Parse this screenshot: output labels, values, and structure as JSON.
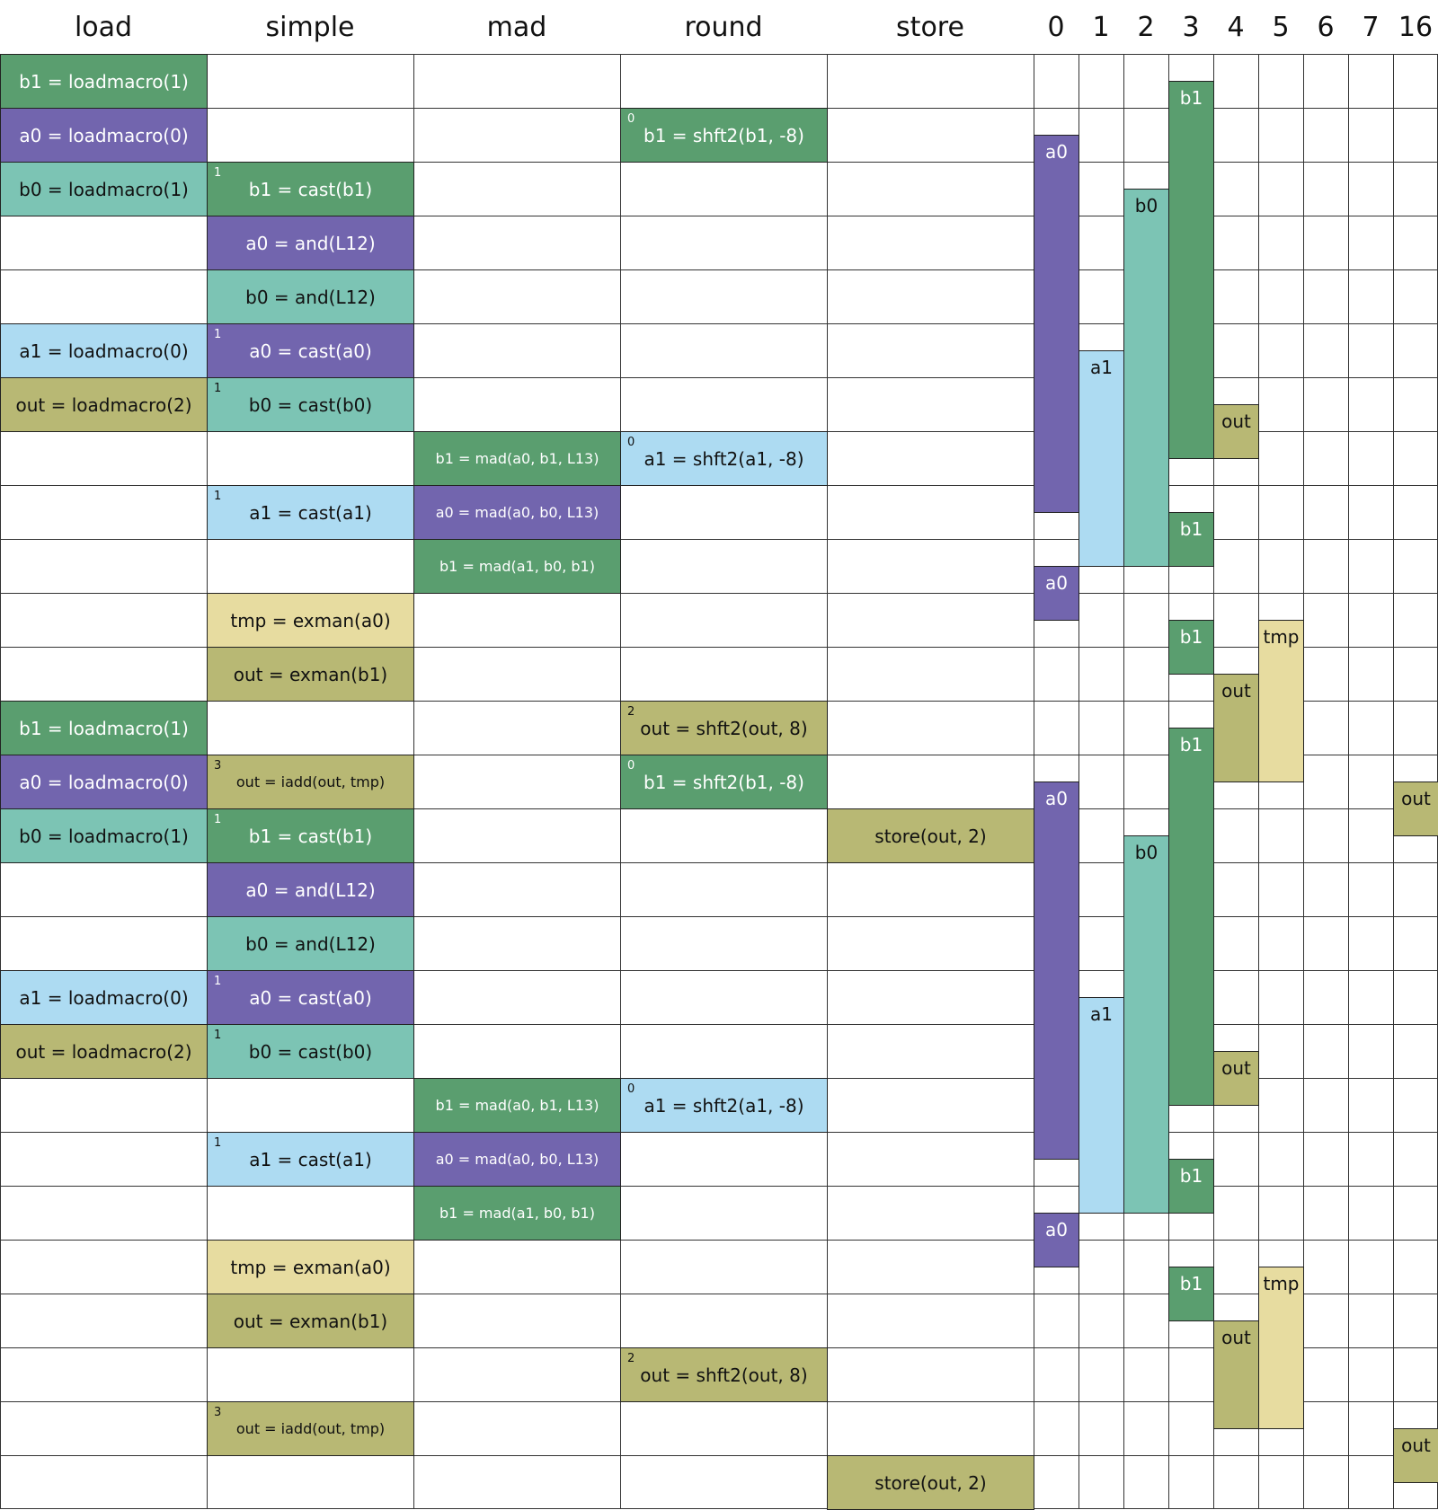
{
  "header": {
    "columns": [
      "load",
      "simple",
      "mad",
      "round",
      "store"
    ],
    "registers": [
      "0",
      "1",
      "2",
      "3",
      "4",
      "5",
      "6",
      "7",
      "16"
    ]
  },
  "rows": [
    [
      {
        "text": "b1 = loadmacro(1)",
        "color": "#5a9e6f"
      },
      null,
      null,
      null,
      null
    ],
    [
      {
        "text": "a0 = loadmacro(0)",
        "color": "#7265ae"
      },
      null,
      null,
      {
        "text": "b1 = shft2(b1, -8)",
        "sup": 0,
        "color": "#5a9e6f"
      },
      null
    ],
    [
      {
        "text": "b0 = loadmacro(1)",
        "color": "#7cc4b4"
      },
      {
        "text": "b1 = cast(b1)",
        "sup": 1,
        "color": "#5a9e6f"
      },
      null,
      null,
      null
    ],
    [
      null,
      {
        "text": "a0 = and(L12)",
        "color": "#7265ae"
      },
      null,
      null,
      null
    ],
    [
      null,
      {
        "text": "b0 = and(L12)",
        "color": "#7cc4b4"
      },
      null,
      null,
      null
    ],
    [
      {
        "text": "a1 = loadmacro(0)",
        "color": "#addbf2"
      },
      {
        "text": "a0 = cast(a0)",
        "sup": 1,
        "color": "#7265ae"
      },
      null,
      null,
      null
    ],
    [
      {
        "text": "out = loadmacro(2)",
        "color": "#b8b874"
      },
      {
        "text": "b0 = cast(b0)",
        "sup": 1,
        "color": "#7cc4b4"
      },
      null,
      null,
      null
    ],
    [
      null,
      null,
      {
        "text": "b1 = mad(a0, b1, L13)",
        "color": "#5a9e6f"
      },
      {
        "text": "a1 = shft2(a1, -8)",
        "sup": 0,
        "color": "#addbf2"
      },
      null
    ],
    [
      null,
      {
        "text": "a1 = cast(a1)",
        "sup": 1,
        "color": "#addbf2"
      },
      {
        "text": "a0 = mad(a0, b0, L13)",
        "color": "#7265ae"
      },
      null,
      null
    ],
    [
      null,
      null,
      {
        "text": "b1 = mad(a1, b0, b1)",
        "color": "#5a9e6f"
      },
      null,
      null
    ],
    [
      null,
      {
        "text": "tmp = exman(a0)",
        "color": "#e7dca0"
      },
      null,
      null,
      null
    ],
    [
      null,
      {
        "text": "out = exman(b1)",
        "color": "#b8b874"
      },
      null,
      null,
      null
    ],
    [
      {
        "text": "b1 = loadmacro(1)",
        "color": "#5a9e6f"
      },
      null,
      null,
      {
        "text": "out = shft2(out, 8)",
        "sup": 2,
        "color": "#b8b874"
      },
      null
    ],
    [
      {
        "text": "a0 = loadmacro(0)",
        "color": "#7265ae"
      },
      {
        "text": "out = iadd(out, tmp)",
        "sup": 3,
        "color": "#b8b874"
      },
      null,
      {
        "text": "b1 = shft2(b1, -8)",
        "sup": 0,
        "color": "#5a9e6f"
      },
      null
    ],
    [
      {
        "text": "b0 = loadmacro(1)",
        "color": "#7cc4b4"
      },
      {
        "text": "b1 = cast(b1)",
        "sup": 1,
        "color": "#5a9e6f"
      },
      null,
      null,
      {
        "text": "store(out, 2)",
        "color": "#b8b874"
      }
    ],
    [
      null,
      {
        "text": "a0 = and(L12)",
        "color": "#7265ae"
      },
      null,
      null,
      null
    ],
    [
      null,
      {
        "text": "b0 = and(L12)",
        "color": "#7cc4b4"
      },
      null,
      null,
      null
    ],
    [
      {
        "text": "a1 = loadmacro(0)",
        "color": "#addbf2"
      },
      {
        "text": "a0 = cast(a0)",
        "sup": 1,
        "color": "#7265ae"
      },
      null,
      null,
      null
    ],
    [
      {
        "text": "out = loadmacro(2)",
        "color": "#b8b874"
      },
      {
        "text": "b0 = cast(b0)",
        "sup": 1,
        "color": "#7cc4b4"
      },
      null,
      null,
      null
    ],
    [
      null,
      null,
      {
        "text": "b1 = mad(a0, b1, L13)",
        "color": "#5a9e6f"
      },
      {
        "text": "a1 = shft2(a1, -8)",
        "sup": 0,
        "color": "#addbf2"
      },
      null
    ],
    [
      null,
      {
        "text": "a1 = cast(a1)",
        "sup": 1,
        "color": "#addbf2"
      },
      {
        "text": "a0 = mad(a0, b0, L13)",
        "color": "#7265ae"
      },
      null,
      null
    ],
    [
      null,
      null,
      {
        "text": "b1 = mad(a1, b0, b1)",
        "color": "#5a9e6f"
      },
      null,
      null
    ],
    [
      null,
      {
        "text": "tmp = exman(a0)",
        "color": "#e7dca0"
      },
      null,
      null,
      null
    ],
    [
      null,
      {
        "text": "out = exman(b1)",
        "color": "#b8b874"
      },
      null,
      null,
      null
    ],
    [
      null,
      null,
      null,
      {
        "text": "out = shft2(out, 8)",
        "sup": 2,
        "color": "#b8b874"
      },
      null
    ],
    [
      null,
      {
        "text": "out = iadd(out, tmp)",
        "sup": 3,
        "color": "#b8b874"
      },
      null,
      null,
      null
    ],
    [
      null,
      null,
      null,
      null,
      {
        "text": "store(out, 2)",
        "color": "#b8b874"
      }
    ]
  ],
  "bars": [
    {
      "label": "b1",
      "color": "#5a9e6f"
    },
    {
      "label": "a0",
      "color": "#7265ae"
    },
    {
      "label": "b0",
      "color": "#7cc4b4"
    },
    {
      "label": "a1",
      "color": "#addbf2"
    },
    {
      "label": "out",
      "color": "#b8b874"
    },
    {
      "label": "b1",
      "color": "#5a9e6f"
    },
    {
      "label": "a0",
      "color": "#7265ae"
    },
    {
      "label": "b1",
      "color": "#5a9e6f"
    },
    {
      "label": "tmp",
      "color": "#e7dca0"
    },
    {
      "label": "out",
      "color": "#b8b874"
    },
    {
      "label": "b1",
      "color": "#5a9e6f"
    },
    {
      "label": "out",
      "color": "#b8b874"
    },
    {
      "label": "a0",
      "color": "#7265ae"
    },
    {
      "label": "b0",
      "color": "#7cc4b4"
    },
    {
      "label": "a1",
      "color": "#addbf2"
    },
    {
      "label": "out",
      "color": "#b8b874"
    },
    {
      "label": "b1",
      "color": "#5a9e6f"
    },
    {
      "label": "a0",
      "color": "#7265ae"
    },
    {
      "label": "b1",
      "color": "#5a9e6f"
    },
    {
      "label": "tmp",
      "color": "#e7dca0"
    },
    {
      "label": "out",
      "color": "#b8b874"
    },
    {
      "label": "out",
      "color": "#b8b874"
    }
  ]
}
